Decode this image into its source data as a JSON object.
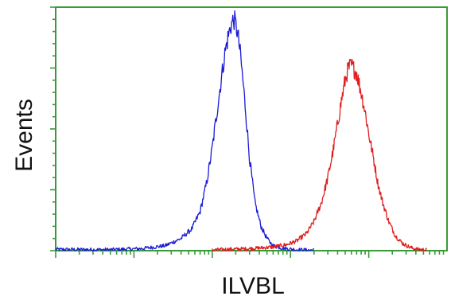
{
  "chart_data": {
    "type": "line",
    "title": "",
    "xlabel": "ILVBL",
    "ylabel": "Events",
    "x_scale": "log",
    "xlim": [
      1,
      100000
    ],
    "ylim": [
      0,
      100
    ],
    "grid": false,
    "legend": "none",
    "series": [
      {
        "color": "#1a1ad6",
        "x": [
          1,
          5,
          12,
          25,
          40,
          55,
          70,
          85,
          100,
          115,
          130,
          145,
          160,
          175,
          190,
          210,
          230,
          260,
          300,
          350,
          420,
          500,
          600,
          800,
          1200,
          2000
        ],
        "y": [
          0.5,
          0.4,
          0.8,
          2,
          5,
          9,
          16,
          28,
          42,
          57,
          70,
          81,
          88,
          93,
          95,
          90,
          80,
          62,
          38,
          20,
          10,
          5,
          2,
          1,
          0.4,
          0.2
        ]
      },
      {
        "color": "#e01e1e",
        "x": [
          100,
          300,
          600,
          900,
          1200,
          1600,
          2000,
          2500,
          3000,
          3500,
          4000,
          4500,
          5000,
          5500,
          6000,
          7000,
          8000,
          9000,
          10000,
          11500,
          13000,
          15000,
          18000,
          22000,
          27000,
          33000,
          40000,
          55000
        ],
        "y": [
          0.3,
          0.8,
          1.5,
          2.5,
          4,
          7,
          12,
          20,
          30,
          41,
          52,
          62,
          70,
          75,
          76,
          73,
          65,
          57,
          48,
          38,
          28,
          20,
          12,
          6,
          3,
          1.5,
          0.6,
          0.3
        ]
      }
    ]
  }
}
